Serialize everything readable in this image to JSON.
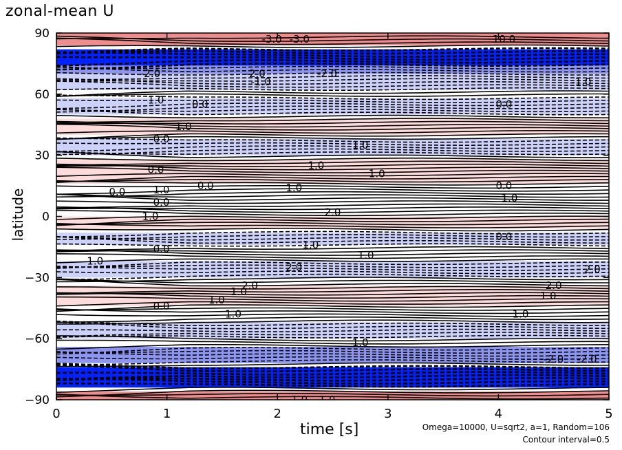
{
  "chart_data": {
    "type": "heatmap",
    "title": "zonal-mean U",
    "xlabel": "time [s]",
    "ylabel": "latitude",
    "xlim": [
      0,
      5
    ],
    "ylim": [
      -90,
      90
    ],
    "x_ticks": [
      0,
      1,
      2,
      3,
      4,
      5
    ],
    "y_ticks": [
      -90,
      -60,
      -30,
      0,
      30,
      60,
      90
    ],
    "x_tick_labels": [
      "0",
      "1",
      "2",
      "3",
      "4",
      "5"
    ],
    "y_tick_labels": [
      "−90",
      "−60",
      "−30",
      "0",
      "30",
      "60",
      "90"
    ],
    "contour_interval": 0.5,
    "notes": [
      "Omega=10000, U=sqrt2, a=1, Random=106",
      "Contour interval=0.5"
    ],
    "colors": {
      "strong_negative": "#0022ff",
      "negative": "#8c96f0",
      "weak_negative": "#cdd2fa",
      "weak_positive": "#ffdcdc",
      "positive": "#f08c8c",
      "strong_positive": "#e03030",
      "contour": "#000000"
    },
    "latitude_bands": [
      {
        "lat": [
          84,
          90
        ],
        "u": 1.5
      },
      {
        "lat": [
          74,
          82
        ],
        "u": -4.0
      },
      {
        "lat": [
          70,
          74
        ],
        "u": -2.0
      },
      {
        "lat": [
          62,
          70
        ],
        "u": -1.0
      },
      {
        "lat": [
          50,
          58
        ],
        "u": -0.5
      },
      {
        "lat": [
          40,
          48
        ],
        "u": 0.5
      },
      {
        "lat": [
          30,
          38
        ],
        "u": -0.5
      },
      {
        "lat": [
          16,
          28
        ],
        "u": 0.5
      },
      {
        "lat": [
          -6,
          0
        ],
        "u": 0.5
      },
      {
        "lat": [
          -14,
          -8
        ],
        "u": -0.5
      },
      {
        "lat": [
          -30,
          -22
        ],
        "u": -0.5
      },
      {
        "lat": [
          -44,
          -34
        ],
        "u": 0.5
      },
      {
        "lat": [
          -60,
          -52
        ],
        "u": -0.5
      },
      {
        "lat": [
          -72,
          -64
        ],
        "u": -1.5
      },
      {
        "lat": [
          -84,
          -74
        ],
        "u": -4.0
      },
      {
        "lat": [
          -90,
          -86
        ],
        "u": 1.5
      }
    ],
    "contour_labels": [
      {
        "t": 1.95,
        "lat": 87,
        "text": "-3.0"
      },
      {
        "t": 2.2,
        "lat": 87,
        "text": "-3.0"
      },
      {
        "t": 4.05,
        "lat": 87,
        "text": "10.0"
      },
      {
        "t": 0.85,
        "lat": 70,
        "text": "-2.0"
      },
      {
        "t": 1.8,
        "lat": 70,
        "text": "-2.0"
      },
      {
        "t": 2.45,
        "lat": 70,
        "text": "-2.0"
      },
      {
        "t": 1.85,
        "lat": 66,
        "text": "-1.0"
      },
      {
        "t": 4.75,
        "lat": 66,
        "text": "-1.0"
      },
      {
        "t": 0.9,
        "lat": 57,
        "text": "1.0"
      },
      {
        "t": 1.3,
        "lat": 55,
        "text": "0.0"
      },
      {
        "t": 4.05,
        "lat": 55,
        "text": "0.0"
      },
      {
        "t": 1.15,
        "lat": 44,
        "text": "1.0"
      },
      {
        "t": 0.95,
        "lat": 38,
        "text": "0.0"
      },
      {
        "t": 2.75,
        "lat": 35,
        "text": "1.0"
      },
      {
        "t": 2.35,
        "lat": 25,
        "text": "1.0"
      },
      {
        "t": 2.9,
        "lat": 21,
        "text": "1.0"
      },
      {
        "t": 0.9,
        "lat": 23,
        "text": "0.0"
      },
      {
        "t": 0.55,
        "lat": 12,
        "text": "0.0"
      },
      {
        "t": 0.95,
        "lat": 13,
        "text": "1.0"
      },
      {
        "t": 2.15,
        "lat": 14,
        "text": "1.0"
      },
      {
        "t": 1.35,
        "lat": 15,
        "text": "0.0"
      },
      {
        "t": 4.05,
        "lat": 15,
        "text": "0.0"
      },
      {
        "t": 4.1,
        "lat": 9,
        "text": "1.0"
      },
      {
        "t": 0.95,
        "lat": 7,
        "text": "0.0"
      },
      {
        "t": 0.85,
        "lat": 0,
        "text": "1.0"
      },
      {
        "t": 2.5,
        "lat": 2,
        "text": "2.0"
      },
      {
        "t": 4.05,
        "lat": -10,
        "text": "0.0"
      },
      {
        "t": 2.3,
        "lat": -14,
        "text": "1.0"
      },
      {
        "t": 2.8,
        "lat": -19,
        "text": "1.0"
      },
      {
        "t": 0.35,
        "lat": -22,
        "text": "1.0"
      },
      {
        "t": 0.95,
        "lat": -16,
        "text": "0.0"
      },
      {
        "t": 2.15,
        "lat": -25,
        "text": "2.0"
      },
      {
        "t": 1.75,
        "lat": -34,
        "text": "2.0"
      },
      {
        "t": 1.65,
        "lat": -37,
        "text": "1.0"
      },
      {
        "t": 4.5,
        "lat": -34,
        "text": "2.0"
      },
      {
        "t": 4.85,
        "lat": -26,
        "text": "2.0"
      },
      {
        "t": 0.95,
        "lat": -44,
        "text": "0.0"
      },
      {
        "t": 1.45,
        "lat": -41,
        "text": "1.0"
      },
      {
        "t": 1.6,
        "lat": -48,
        "text": "1.0"
      },
      {
        "t": 4.2,
        "lat": -48,
        "text": "1.0"
      },
      {
        "t": 4.45,
        "lat": -39,
        "text": "1.0"
      },
      {
        "t": 2.75,
        "lat": -62,
        "text": "1.0"
      },
      {
        "t": 4.5,
        "lat": -70,
        "text": "-2.0"
      },
      {
        "t": 4.8,
        "lat": -70,
        "text": "-2.0"
      },
      {
        "t": 2.2,
        "lat": -90,
        "text": "1.0"
      },
      {
        "t": 2.45,
        "lat": -90,
        "text": "1.0"
      }
    ]
  }
}
